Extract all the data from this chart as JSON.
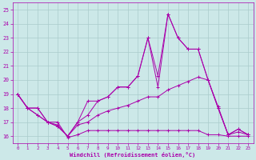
{
  "xlabel": "Windchill (Refroidissement éolien,°C)",
  "background_color": "#cce8e8",
  "grid_color": "#aacccc",
  "line_color": "#aa00aa",
  "xlim_min": -0.5,
  "xlim_max": 23.5,
  "ylim_min": 15.5,
  "ylim_max": 25.5,
  "yticks": [
    16,
    17,
    18,
    19,
    20,
    21,
    22,
    23,
    24,
    25
  ],
  "xticks": [
    0,
    1,
    2,
    3,
    4,
    5,
    6,
    7,
    8,
    9,
    10,
    11,
    12,
    13,
    14,
    15,
    16,
    17,
    18,
    19,
    20,
    21,
    22,
    23
  ],
  "line1_x": [
    0,
    1,
    2,
    3,
    4,
    5,
    6,
    7,
    8,
    9,
    10,
    11,
    12,
    13,
    14,
    15,
    16,
    17,
    18,
    19,
    20,
    21,
    22,
    23
  ],
  "line1_y": [
    19,
    18,
    18,
    17,
    17,
    15.9,
    16.1,
    16.4,
    16.4,
    16.4,
    16.4,
    16.4,
    16.4,
    16.4,
    16.4,
    16.4,
    16.4,
    16.4,
    16.4,
    16.1,
    16.1,
    16.0,
    16.0,
    16.0
  ],
  "line2_x": [
    0,
    1,
    2,
    3,
    4,
    5,
    6,
    7,
    8,
    9,
    10,
    11,
    12,
    13,
    14,
    15,
    16,
    17,
    18,
    19,
    20,
    21,
    22,
    23
  ],
  "line2_y": [
    19,
    18,
    18,
    17,
    16.8,
    16.0,
    16.8,
    17.0,
    17.5,
    17.8,
    18.0,
    18.2,
    18.5,
    18.8,
    18.8,
    19.3,
    19.6,
    19.9,
    20.2,
    20.0,
    18.0,
    16.1,
    16.3,
    16.1
  ],
  "line3_x": [
    0,
    1,
    2,
    3,
    4,
    5,
    6,
    7,
    8,
    9,
    10,
    11,
    12,
    13,
    14,
    15,
    16,
    17,
    18,
    19,
    20,
    21,
    22,
    23
  ],
  "line3_y": [
    19,
    18,
    17.5,
    17.0,
    16.7,
    16.0,
    17.0,
    17.5,
    18.5,
    18.8,
    19.5,
    19.5,
    20.3,
    23.0,
    20.3,
    24.7,
    23.0,
    22.2,
    22.2,
    20.0,
    18.1,
    16.1,
    16.5,
    16.1
  ],
  "line4_x": [
    0,
    1,
    2,
    3,
    4,
    5,
    6,
    7,
    8,
    9,
    10,
    11,
    12,
    13,
    14,
    15,
    16,
    17,
    18,
    19,
    20,
    21,
    22,
    23
  ],
  "line4_y": [
    19,
    18,
    17.5,
    17.0,
    16.7,
    16.0,
    17.0,
    18.5,
    18.5,
    18.8,
    19.5,
    19.5,
    20.3,
    23.0,
    19.5,
    24.7,
    23.0,
    22.2,
    22.2,
    20.0,
    18.0,
    16.1,
    16.5,
    16.1
  ]
}
